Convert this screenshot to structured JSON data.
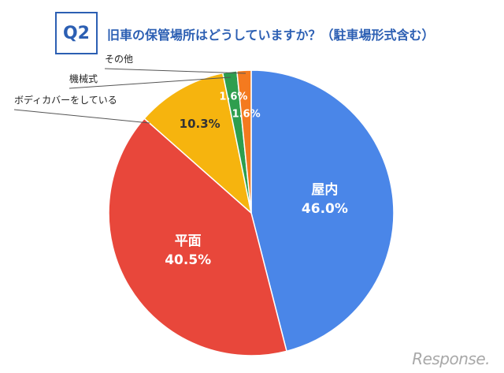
{
  "header": {
    "badge": "Q2",
    "title": "旧車の保管場所はどうしていますか？（駐車場形式含む）"
  },
  "watermark": "Response.",
  "chart_data": {
    "type": "pie",
    "title": "旧車の保管場所はどうしていますか？（駐車場形式含む）",
    "start_angle_deg": 0,
    "direction": "clockwise",
    "slices": [
      {
        "name": "屋内",
        "value": 46.0,
        "label": "46.0%",
        "color": "#4a86e8"
      },
      {
        "name": "平面",
        "value": 40.5,
        "label": "40.5%",
        "color": "#e8473b"
      },
      {
        "name": "ボディカバーをしている",
        "value": 10.3,
        "label": "10.3%",
        "color": "#f6b40e"
      },
      {
        "name": "機械式",
        "value": 1.6,
        "label": "1.6%",
        "color": "#2e9e4e"
      },
      {
        "name": "その他",
        "value": 1.6,
        "label": "1.6%",
        "color": "#f47a1f"
      }
    ]
  }
}
